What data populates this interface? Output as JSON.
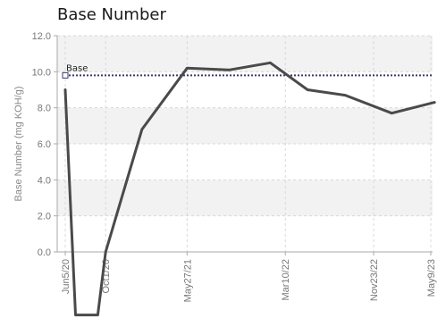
{
  "page": {
    "title": "Base Number"
  },
  "chart_data": {
    "type": "line",
    "title": "Base Number",
    "xlabel": "",
    "ylabel": "Base Number (mg KOH/g)",
    "ylim": [
      0,
      12
    ],
    "yticks": [
      "0.0",
      "2.0",
      "4.0",
      "6.0",
      "8.0",
      "10.0",
      "12.0"
    ],
    "x_tick_labels": [
      "Jun5/20",
      "Oct1/20",
      "May27/21",
      "Mar10/22",
      "Nov23/22",
      "May9/23"
    ],
    "x_tick_dates": [
      "2020-06-05",
      "2020-10-01",
      "2021-05-27",
      "2022-03-10",
      "2022-11-23",
      "2023-05-09"
    ],
    "grid": true,
    "reference_line": {
      "label": "Base",
      "value": 9.8,
      "color": "#3a3a6a"
    },
    "series": [
      {
        "color": "#4a4a4a",
        "points": [
          {
            "x": "2020-06-05",
            "y": 9.0
          },
          {
            "x": "2020-07-05",
            "y": -3.5
          },
          {
            "x": "2020-09-08",
            "y": -3.5
          },
          {
            "x": "2020-10-01",
            "y": 0.0
          },
          {
            "x": "2021-01-15",
            "y": 6.8
          },
          {
            "x": "2021-05-27",
            "y": 10.2
          },
          {
            "x": "2021-09-27",
            "y": 10.1
          },
          {
            "x": "2022-01-25",
            "y": 10.5
          },
          {
            "x": "2022-05-14",
            "y": 9.0
          },
          {
            "x": "2022-09-01",
            "y": 8.7
          },
          {
            "x": "2023-01-15",
            "y": 7.7
          },
          {
            "x": "2023-05-20",
            "y": 8.3
          }
        ]
      }
    ]
  }
}
